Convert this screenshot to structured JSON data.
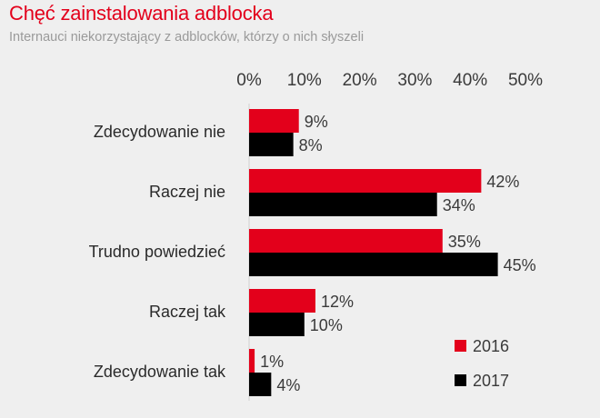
{
  "title": "Chęć zainstalowania adblocka",
  "subtitle": "Internauci niekorzystający z adblocków, którzy o nich słyszeli",
  "chart_data": {
    "type": "bar",
    "orientation": "horizontal",
    "title": "Chęć zainstalowania adblocka",
    "subtitle": "Internauci niekorzystający z adblocków, którzy o nich słyszeli",
    "categories": [
      "Zdecydowanie nie",
      "Raczej nie",
      "Trudno powiedzieć",
      "Raczej tak",
      "Zdecydowanie tak"
    ],
    "series": [
      {
        "name": "2016",
        "color": "#e3001b",
        "values": [
          9,
          42,
          35,
          12,
          1
        ]
      },
      {
        "name": "2017",
        "color": "#000000",
        "values": [
          8,
          34,
          45,
          10,
          4
        ]
      }
    ],
    "xlim": [
      0,
      50
    ],
    "xticks": [
      "0%",
      "10%",
      "20%",
      "30%",
      "40%",
      "50%"
    ],
    "value_suffix": "%",
    "legend": "bottom-right"
  }
}
